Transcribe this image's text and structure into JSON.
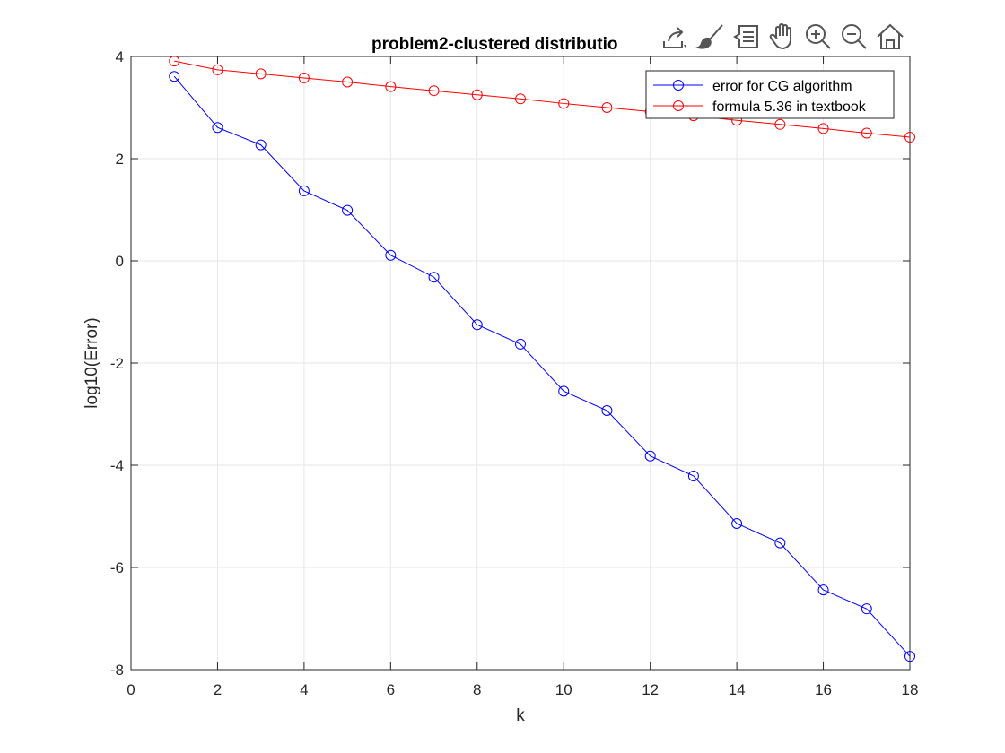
{
  "toolbar": {
    "icons": [
      "export-icon",
      "brush-icon",
      "data-tips-icon",
      "pan-icon",
      "zoom-in-icon",
      "zoom-out-icon",
      "home-icon"
    ]
  },
  "colors": {
    "cg": "#0000ff",
    "formula": "#ff0000",
    "grid": "#e6e6e6",
    "axis": "#262626"
  },
  "chart_data": {
    "type": "line",
    "title": "problem2-clustered distributio",
    "xlabel": "k",
    "ylabel": "log10(Error)",
    "xlim": [
      0,
      18
    ],
    "ylim": [
      -8,
      4
    ],
    "xticks": [
      0,
      2,
      4,
      6,
      8,
      10,
      12,
      14,
      16,
      18
    ],
    "yticks": [
      -8,
      -6,
      -4,
      -2,
      0,
      2,
      4
    ],
    "grid": true,
    "legend_position": "top-right",
    "x": [
      1,
      2,
      3,
      4,
      5,
      6,
      7,
      8,
      9,
      10,
      11,
      12,
      13,
      14,
      15,
      16,
      17,
      18
    ],
    "series": [
      {
        "name": "error for CG algorithm",
        "color": "#0000ff",
        "marker": "circle",
        "values": [
          3.61,
          2.61,
          2.27,
          1.37,
          0.99,
          0.11,
          -0.32,
          -1.25,
          -1.63,
          -2.55,
          -2.93,
          -3.82,
          -4.21,
          -5.14,
          -5.52,
          -6.44,
          -6.81,
          -7.74
        ]
      },
      {
        "name": "formula 5.36 in textbook",
        "color": "#ff0000",
        "marker": "circle",
        "values": [
          3.91,
          3.74,
          3.66,
          3.58,
          3.5,
          3.41,
          3.33,
          3.25,
          3.17,
          3.08,
          3.0,
          2.92,
          2.84,
          2.75,
          2.67,
          2.59,
          2.5,
          2.42
        ]
      }
    ]
  }
}
